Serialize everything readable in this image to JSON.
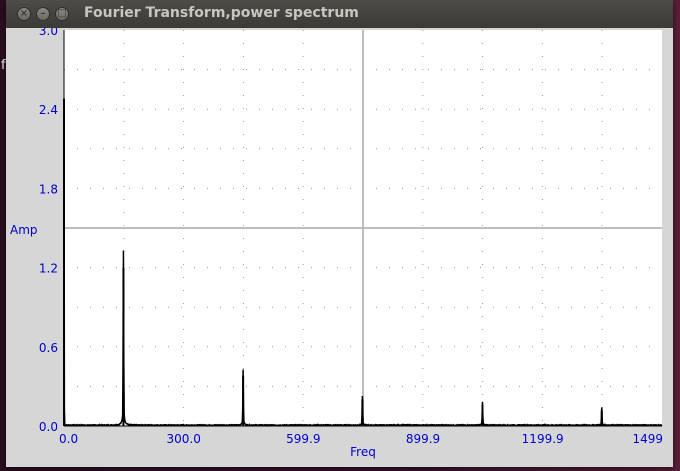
{
  "window": {
    "title": "Fourier Transform,power spectrum"
  },
  "background": {
    "letter": "f"
  },
  "chart_data": {
    "type": "line",
    "xlabel": "Freq",
    "ylabel": "Amp",
    "xlim": [
      0,
      1499
    ],
    "ylim": [
      0,
      3.0
    ],
    "x_tick_labels": [
      "0.0",
      "300.0",
      "599.9",
      "899.9",
      "1199.9",
      "1499"
    ],
    "x_tick_values": [
      0,
      300,
      599.9,
      899.9,
      1199.9,
      1499
    ],
    "y_tick_labels": [
      "0.0",
      "0.6",
      "1.2",
      "1.8",
      "2.4",
      "3.0"
    ],
    "y_tick_values": [
      0,
      0.6,
      1.2,
      1.8,
      2.4,
      3.0
    ],
    "crosshair": {
      "x": 749.5,
      "y": 1.5
    },
    "grid": "dotted",
    "series": [
      {
        "peaks": [
          {
            "x": 0,
            "y": 2.48
          },
          {
            "x": 149,
            "y": 1.2
          },
          {
            "x": 449,
            "y": 0.38
          },
          {
            "x": 748,
            "y": 0.2
          },
          {
            "x": 1049,
            "y": 0.16
          },
          {
            "x": 1348,
            "y": 0.12
          }
        ]
      }
    ],
    "axis_color": "#0000cc",
    "line_color": "#000000"
  }
}
